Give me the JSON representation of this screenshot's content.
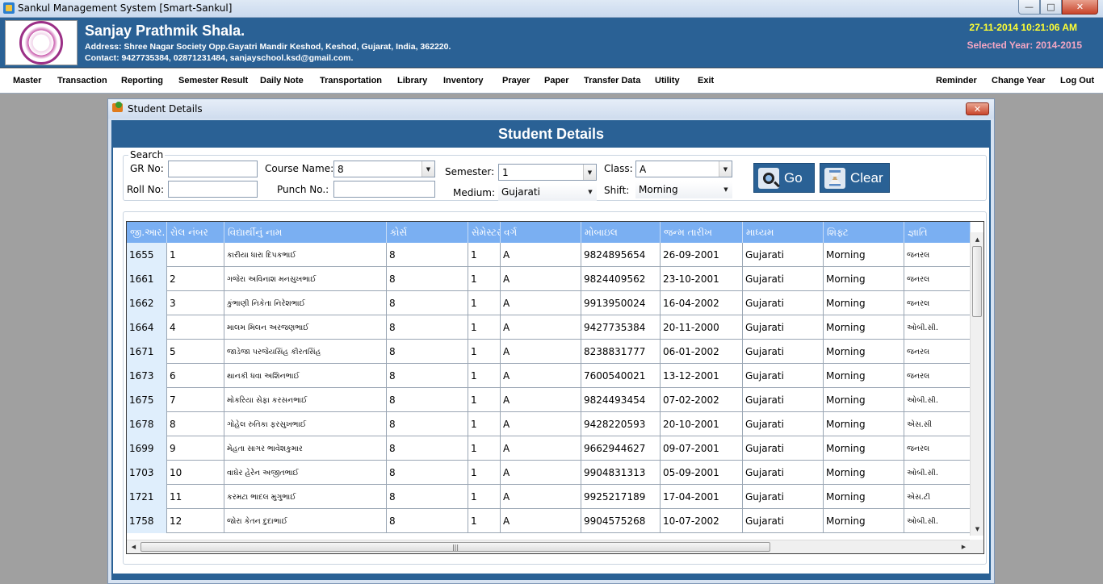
{
  "window": {
    "title": "Sankul Management System [Smart-Sankul]",
    "min_symbol": "—",
    "max_symbol": "□",
    "close_symbol": "✕"
  },
  "header": {
    "school_name": "Sanjay Prathmik Shala.",
    "address": "Address: Shree Nagar Society  Opp.Gayatri Mandir Keshod, Keshod, Gujarat, India, 362220.",
    "contact": "Contact: 9427735384, 02871231484, sanjayschool.ksd@gmail.com.",
    "datetime": "27-11-2014 10:21:06 AM",
    "selected_year": "Selected Year: 2014-2015"
  },
  "menu": {
    "left": [
      "Master",
      "Transaction",
      "Reporting",
      "Semester Result",
      "Daily Note",
      "Transportation",
      "Library",
      "Inventory",
      "Prayer",
      "Paper",
      "Transfer Data",
      "Utility",
      "Exit"
    ],
    "right": [
      "Reminder",
      "Change Year",
      "Log Out"
    ]
  },
  "child": {
    "title": "Student Details",
    "close_symbol": "✕",
    "panel_title": "Student Details"
  },
  "search": {
    "legend": "Search",
    "gr_label": "GR No:",
    "gr_value": "",
    "roll_label": "Roll No:",
    "roll_value": "",
    "course_label": "Course Name:",
    "course_value": "8",
    "punch_label": "Punch No.:",
    "punch_value": "",
    "semester_label": "Semester:",
    "semester_value": "1",
    "medium_label": "Medium:",
    "medium_value": "Gujarati",
    "class_label": "Class:",
    "class_value": "A",
    "shift_label": "Shift:",
    "shift_value": "Morning",
    "go_label": "Go",
    "clear_label": "Clear"
  },
  "grid": {
    "columns": [
      "જી.આર.",
      "રોલ નંબર",
      "વિદ્યાર્થીનું નામ",
      "કોર્સ",
      "સેમેસ્ટર",
      "વર્ગ",
      "મોબાઇલ",
      "જન્મ તારીખ",
      "માધ્યમ",
      "શિફ્ટ",
      "જ્ઞાતિ"
    ],
    "rows": [
      [
        "1655",
        "1",
        "કારીયા ધારા દિપકભાઈ",
        "8",
        "1",
        "A",
        "9824895654",
        "26-09-2001",
        "Gujarati",
        "Morning",
        "જનરલ"
      ],
      [
        "1661",
        "2",
        "ગજેરા અવિનાશ મનસુખભાઈ",
        "8",
        "1",
        "A",
        "9824409562",
        "23-10-2001",
        "Gujarati",
        "Morning",
        "જનરલ"
      ],
      [
        "1662",
        "3",
        "કુંભાણી નિકેતા નિરેશભાઈ",
        "8",
        "1",
        "A",
        "9913950024",
        "16-04-2002",
        "Gujarati",
        "Morning",
        "જનરલ"
      ],
      [
        "1664",
        "4",
        "માલમ મિલન અરજણભાઈ",
        "8",
        "1",
        "A",
        "9427735384",
        "20-11-2000",
        "Gujarati",
        "Morning",
        "ઓબી.સી."
      ],
      [
        "1671",
        "5",
        "જાડેજા પરજેયસિંહ કીરતસિંહ",
        "8",
        "1",
        "A",
        "8238831777",
        "06-01-2002",
        "Gujarati",
        "Morning",
        "જનરલ"
      ],
      [
        "1673",
        "6",
        "થાનકી ધવા અશિનભાઈ",
        "8",
        "1",
        "A",
        "7600540021",
        "13-12-2001",
        "Gujarati",
        "Morning",
        "જનરલ"
      ],
      [
        "1675",
        "7",
        "મોકરિયા સેફા કરસનભાઈ",
        "8",
        "1",
        "A",
        "9824493454",
        "07-02-2002",
        "Gujarati",
        "Morning",
        "ઓબી.સી."
      ],
      [
        "1678",
        "8",
        "ગોહેલ રુતિકા ફરસુખભાઈ",
        "8",
        "1",
        "A",
        "9428220593",
        "20-10-2001",
        "Gujarati",
        "Morning",
        "એસ.સી"
      ],
      [
        "1699",
        "9",
        "મેહતા સાગર ભાવેશકુમાર",
        "8",
        "1",
        "A",
        "9662944627",
        "09-07-2001",
        "Gujarati",
        "Morning",
        "જનરલ"
      ],
      [
        "1703",
        "10",
        "વાઘેર હેરેન અજીતભાઈ",
        "8",
        "1",
        "A",
        "9904831313",
        "05-09-2001",
        "Gujarati",
        "Morning",
        "ઓબી.સી."
      ],
      [
        "1721",
        "11",
        "કરમટા ભાદલ મુગુભાઈ",
        "8",
        "1",
        "A",
        "9925217189",
        "17-04-2001",
        "Gujarati",
        "Morning",
        "એસ.ટી"
      ],
      [
        "1758",
        "12",
        "જોરા કેતન દુદાભાઈ",
        "8",
        "1",
        "A",
        "9904575268",
        "10-07-2002",
        "Gujarati",
        "Morning",
        "ઓબી.સી."
      ]
    ]
  }
}
